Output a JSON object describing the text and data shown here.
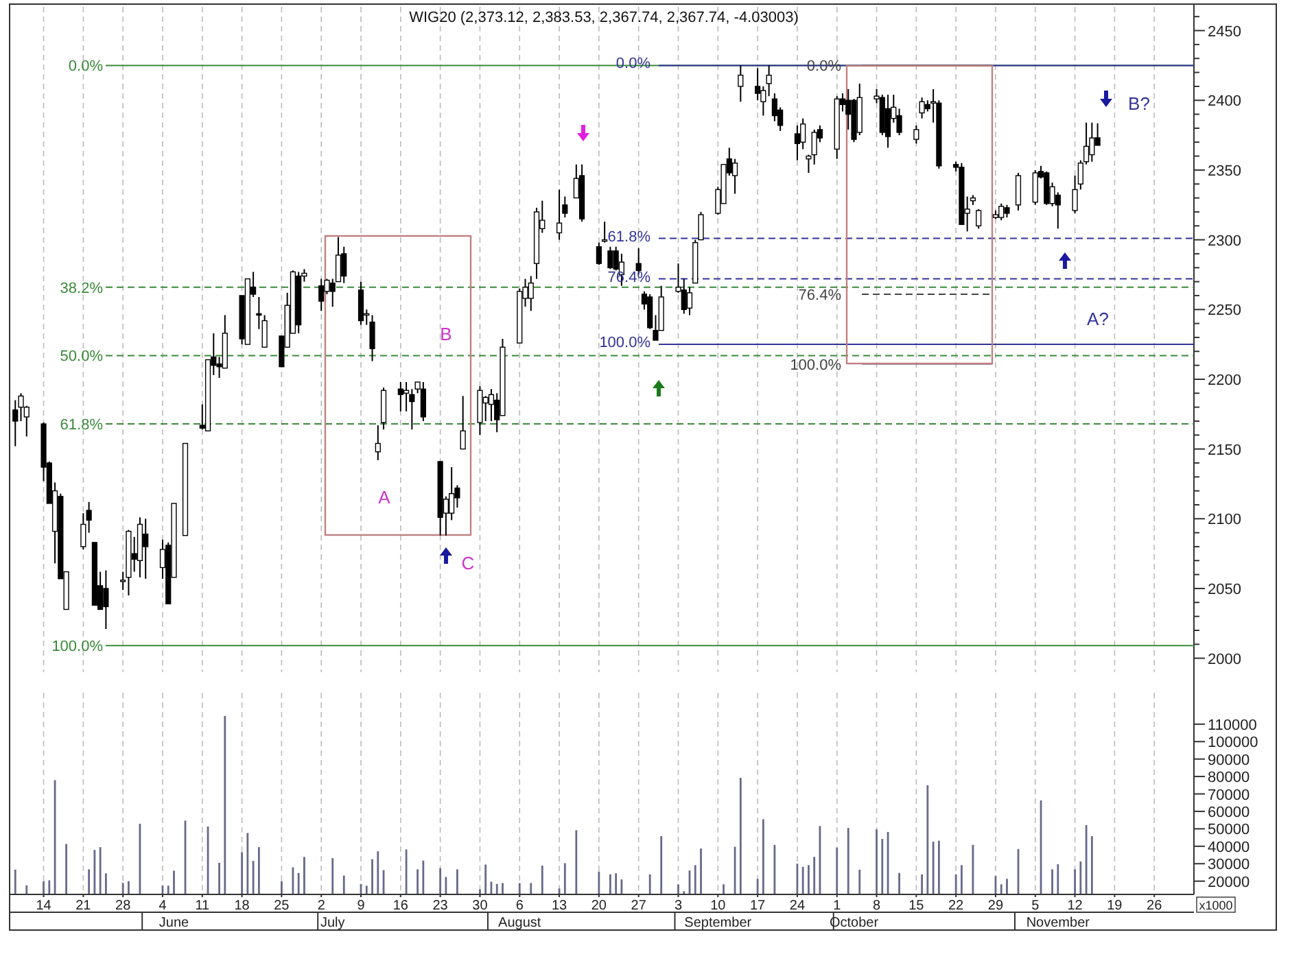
{
  "chart_data": [
    {
      "type": "candlestick",
      "title": "WIG20 (2,373.12, 2,383.53, 2,367.74, 2,367.74, -4.03003)",
      "x": [
        "--05-09",
        "--05-10",
        "--05-11",
        "--05-14",
        "--05-15",
        "--05-16",
        "--05-17",
        "--05-18",
        "--05-21",
        "--05-22",
        "--05-23",
        "--05-24",
        "--05-25",
        "--05-28",
        "--05-29",
        "--05-30",
        "--05-31",
        "--06-01",
        "--06-04",
        "--06-05",
        "--06-06",
        "--06-08",
        "--06-11",
        "--06-12",
        "--06-13",
        "--06-14",
        "--06-15",
        "--06-18",
        "--06-19",
        "--06-20",
        "--06-21",
        "--06-22",
        "--06-25",
        "--06-26",
        "--06-27",
        "--06-28",
        "--06-29",
        "--07-02",
        "--07-03",
        "--07-04",
        "--07-05",
        "--07-06",
        "--07-09",
        "--07-10",
        "--07-11",
        "--07-12",
        "--07-13",
        "--07-16",
        "--07-17",
        "--07-18",
        "--07-19",
        "--07-20",
        "--07-23",
        "--07-24",
        "--07-25",
        "--07-26",
        "--07-27",
        "--07-30",
        "--07-31",
        "--08-01",
        "--08-02",
        "--08-03",
        "--08-06",
        "--08-07",
        "--08-08",
        "--08-09",
        "--08-10",
        "--08-13",
        "--08-14",
        "--08-16",
        "--08-17",
        "--08-20",
        "--08-21",
        "--08-22",
        "--08-23",
        "--08-24",
        "--08-27",
        "--08-28",
        "--08-29",
        "--08-30",
        "--08-31",
        "--09-03",
        "--09-04",
        "--09-05",
        "--09-06",
        "--09-07",
        "--09-10",
        "--09-11",
        "--09-12",
        "--09-13",
        "--09-14",
        "--09-17",
        "--09-18",
        "--09-19",
        "--09-20",
        "--09-21",
        "--09-24",
        "--09-25",
        "--09-26",
        "--09-27",
        "--09-28",
        "--10-01",
        "--10-02",
        "--10-03",
        "--10-04",
        "--10-05",
        "--10-08",
        "--10-09",
        "--10-10",
        "--10-11",
        "--10-12",
        "--10-15",
        "--10-16",
        "--10-17",
        "--10-18",
        "--10-19",
        "--10-22",
        "--10-23",
        "--10-24",
        "--10-25",
        "--10-26",
        "--10-29",
        "--10-30",
        "--10-31",
        "--11-02",
        "--11-05",
        "--11-06",
        "--11-07",
        "--11-08",
        "--11-09",
        "--11-12",
        "--11-13",
        "--11-14",
        "--11-15",
        "--11-16"
      ],
      "ohlc": [
        [
          2178,
          2185,
          2152,
          2170
        ],
        [
          2180,
          2190,
          2170,
          2188
        ],
        [
          2173,
          2181,
          2159,
          2180
        ],
        [
          2168,
          2169,
          2127,
          2137
        ],
        [
          2140,
          2141,
          2111,
          2111
        ],
        [
          2091,
          2126,
          2068,
          2120
        ],
        [
          2116,
          2118,
          2057,
          2057
        ],
        [
          2035,
          2062,
          2035,
          2062
        ],
        [
          2080,
          2104,
          2078,
          2096
        ],
        [
          2106,
          2112,
          2090,
          2099
        ],
        [
          2083,
          2083,
          2038,
          2038
        ],
        [
          2052,
          2062,
          2035,
          2035
        ],
        [
          2050,
          2063,
          2021,
          2037
        ],
        [
          2055,
          2062,
          2049,
          2056
        ],
        [
          2058,
          2092,
          2045,
          2091
        ],
        [
          2075,
          2087,
          2062,
          2071
        ],
        [
          2070,
          2101,
          2058,
          2096
        ],
        [
          2089,
          2100,
          2057,
          2080
        ],
        [
          2065,
          2085,
          2057,
          2078
        ],
        [
          2081,
          2083,
          2039,
          2039
        ],
        [
          2058,
          2111,
          2058,
          2111
        ],
        [
          2088,
          2154,
          2088,
          2154
        ],
        [
          2167,
          2182,
          2164,
          2165
        ],
        [
          2163,
          2214,
          2163,
          2214
        ],
        [
          2216,
          2233,
          2203,
          2210
        ],
        [
          2211,
          2216,
          2201,
          2209
        ],
        [
          2208,
          2246,
          2208,
          2233
        ],
        [
          2260,
          2260,
          2225,
          2229
        ],
        [
          2225,
          2272,
          2225,
          2272
        ],
        [
          2266,
          2277,
          2259,
          2261
        ],
        [
          2247,
          2259,
          2236,
          2246
        ],
        [
          2223,
          2246,
          2223,
          2242
        ],
        [
          2231,
          2231,
          2209,
          2209
        ],
        [
          2223,
          2262,
          2223,
          2253
        ],
        [
          2233,
          2278,
          2233,
          2277
        ],
        [
          2274,
          2277,
          2233,
          2239
        ],
        [
          2274,
          2279,
          2270,
          2276
        ],
        [
          2267,
          2272,
          2249,
          2256
        ],
        [
          2263,
          2272,
          2261,
          2271
        ],
        [
          2269,
          2272,
          2252,
          2263
        ],
        [
          2270,
          2302,
          2270,
          2289
        ],
        [
          2290,
          2295,
          2269,
          2274
        ],
        [
          2264,
          2270,
          2239,
          2242
        ],
        [
          2246,
          2250,
          2239,
          2247
        ],
        [
          2241,
          2246,
          2213,
          2222
        ],
        [
          2148,
          2167,
          2142,
          2154
        ],
        [
          2169,
          2194,
          2164,
          2192
        ],
        [
          2193,
          2198,
          2177,
          2189
        ],
        [
          2190,
          2198,
          2177,
          2192
        ],
        [
          2189,
          2193,
          2164,
          2184
        ],
        [
          2193,
          2198,
          2190,
          2198
        ],
        [
          2193,
          2198,
          2170,
          2173
        ],
        [
          2141,
          2141,
          2088,
          2101
        ],
        [
          2104,
          2116,
          2088,
          2114
        ],
        [
          2104,
          2137,
          2099,
          2118
        ],
        [
          2122,
          2124,
          2108,
          2115
        ],
        [
          2150,
          2188,
          2150,
          2163
        ],
        [
          2169,
          2195,
          2160,
          2192
        ],
        [
          2183,
          2188,
          2170,
          2187
        ],
        [
          2182,
          2193,
          2170,
          2189
        ],
        [
          2185,
          2190,
          2162,
          2171
        ],
        [
          2174,
          2229,
          2174,
          2223
        ],
        [
          2226,
          2265,
          2226,
          2263
        ],
        [
          2258,
          2272,
          2252,
          2266
        ],
        [
          2258,
          2274,
          2249,
          2269
        ],
        [
          2283,
          2323,
          2272,
          2320
        ],
        [
          2308,
          2328,
          2305,
          2314
        ],
        [
          2305,
          2336,
          2300,
          2312
        ],
        [
          2325,
          2331,
          2316,
          2319
        ],
        [
          2330,
          2354,
          2330,
          2344
        ],
        [
          2346,
          2354,
          2313,
          2315
        ],
        [
          2295,
          2298,
          2282,
          2283
        ],
        [
          2299,
          2313,
          2298,
          2300
        ],
        [
          2292,
          2295,
          2279,
          2280
        ],
        [
          2292,
          2295,
          2278,
          2279
        ],
        [
          2275,
          2290,
          2267,
          2284
        ],
        [
          2283,
          2294,
          2275,
          2278
        ],
        [
          2261,
          2263,
          2250,
          2254
        ],
        [
          2259,
          2261,
          2236,
          2237
        ],
        [
          2235,
          2246,
          2228,
          2228
        ],
        [
          2235,
          2267,
          2235,
          2259
        ],
        [
          2263,
          2283,
          2262,
          2266
        ],
        [
          2264,
          2272,
          2247,
          2250
        ],
        [
          2251,
          2266,
          2246,
          2262
        ],
        [
          2269,
          2300,
          2269,
          2298
        ],
        [
          2300,
          2320,
          2300,
          2318
        ],
        [
          2319,
          2338,
          2318,
          2336
        ],
        [
          2326,
          2354,
          2326,
          2354
        ],
        [
          2358,
          2366,
          2346,
          2348
        ],
        [
          2346,
          2358,
          2333,
          2355
        ],
        [
          2410,
          2425,
          2399,
          2418
        ],
        [
          2410,
          2423,
          2400,
          2405
        ],
        [
          2399,
          2410,
          2389,
          2407
        ],
        [
          2412,
          2425,
          2403,
          2418
        ],
        [
          2401,
          2405,
          2385,
          2389
        ],
        [
          2393,
          2395,
          2378,
          2382
        ],
        [
          2376,
          2382,
          2357,
          2369
        ],
        [
          2370,
          2387,
          2365,
          2383
        ],
        [
          2358,
          2361,
          2348,
          2360
        ],
        [
          2361,
          2379,
          2354,
          2377
        ],
        [
          2379,
          2382,
          2370,
          2373
        ],
        [
          2365,
          2403,
          2358,
          2401
        ],
        [
          2401,
          2405,
          2392,
          2397
        ],
        [
          2400,
          2408,
          2379,
          2390
        ],
        [
          2400,
          2401,
          2370,
          2372
        ],
        [
          2377,
          2412,
          2375,
          2402
        ],
        [
          2401,
          2408,
          2398,
          2403
        ],
        [
          2402,
          2404,
          2375,
          2377
        ],
        [
          2394,
          2404,
          2366,
          2374
        ],
        [
          2387,
          2404,
          2384,
          2395
        ],
        [
          2389,
          2394,
          2375,
          2377
        ],
        [
          2372,
          2382,
          2369,
          2379
        ],
        [
          2391,
          2402,
          2387,
          2399
        ],
        [
          2397,
          2400,
          2392,
          2394
        ],
        [
          2398,
          2408,
          2384,
          2399
        ],
        [
          2398,
          2400,
          2351,
          2353
        ],
        [
          2354,
          2356,
          2349,
          2352
        ],
        [
          2352,
          2355,
          2311,
          2311
        ],
        [
          2319,
          2331,
          2306,
          2322
        ],
        [
          2328,
          2332,
          2325,
          2330
        ],
        [
          2310,
          2322,
          2308,
          2321
        ],
        [
          2316,
          2321,
          2315,
          2318
        ],
        [
          2316,
          2326,
          2314,
          2324
        ],
        [
          2323,
          2325,
          2316,
          2319
        ],
        [
          2325,
          2348,
          2321,
          2346
        ],
        [
          2327,
          2350,
          2325,
          2348
        ],
        [
          2349,
          2353,
          2344,
          2345
        ],
        [
          2348,
          2349,
          2325,
          2326
        ],
        [
          2326,
          2341,
          2324,
          2338
        ],
        [
          2332,
          2334,
          2308,
          2325
        ],
        [
          2321,
          2346,
          2319,
          2336
        ],
        [
          2340,
          2357,
          2336,
          2355
        ],
        [
          2356,
          2384,
          2354,
          2367
        ],
        [
          2361,
          2384,
          2356,
          2373
        ],
        [
          2373.12,
          2383.53,
          2367.74,
          2367.74
        ]
      ],
      "xlim": [
        "--05-08",
        "--12-03"
      ],
      "xticks": [
        {
          "value": "--05-14",
          "label": null
        },
        {
          "value": "--05-21",
          "label": null
        },
        {
          "value": "--05-28",
          "label": null
        },
        {
          "value": "--06-04",
          "label": null
        },
        {
          "value": "--06-11",
          "label": null
        },
        {
          "value": "--06-18",
          "label": null
        },
        {
          "value": "--06-25",
          "label": null
        },
        {
          "value": "--07-02",
          "label": null
        },
        {
          "value": "--07-09",
          "label": null
        },
        {
          "value": "--07-16",
          "label": null
        },
        {
          "value": "--07-23",
          "label": null
        },
        {
          "value": "--07-30",
          "label": null
        },
        {
          "value": "--08-06",
          "label": null
        },
        {
          "value": "--08-13",
          "label": null
        },
        {
          "value": "--08-20",
          "label": null
        },
        {
          "value": "--08-27",
          "label": null
        },
        {
          "value": "--09-03",
          "label": null
        },
        {
          "value": "--09-10",
          "label": null
        },
        {
          "value": "--09-17",
          "label": null
        },
        {
          "value": "--09-24",
          "label": null
        },
        {
          "value": "--10-01",
          "label": null
        },
        {
          "value": "--10-08",
          "label": null
        },
        {
          "value": "--10-15",
          "label": null
        },
        {
          "value": "--10-22",
          "label": null
        },
        {
          "value": "--10-29",
          "label": null
        },
        {
          "value": "--11-05",
          "label": null
        },
        {
          "value": "--11-12",
          "label": null
        },
        {
          "value": "--11-19",
          "label": null
        },
        {
          "value": "--11-26",
          "label": null
        }
      ],
      "ylim": [
        1990,
        2467
      ],
      "yticks": [
        2000,
        {
          "value": 2010,
          "label": null
        },
        {
          "value": 2020,
          "label": null
        },
        {
          "value": 2030,
          "label": null
        },
        {
          "value": 2040,
          "label": null
        },
        2050,
        {
          "value": 2060,
          "label": null
        },
        {
          "value": 2070,
          "label": null
        },
        {
          "value": 2080,
          "label": null
        },
        {
          "value": 2090,
          "label": null
        },
        2100,
        {
          "value": 2110,
          "label": null
        },
        {
          "value": 2120,
          "label": null
        },
        {
          "value": 2130,
          "label": null
        },
        {
          "value": 2140,
          "label": null
        },
        2150,
        {
          "value": 2160,
          "label": null
        },
        {
          "value": 2170,
          "label": null
        },
        {
          "value": 2180,
          "label": null
        },
        {
          "value": 2190,
          "label": null
        },
        2200,
        {
          "value": 2210,
          "label": null
        },
        {
          "value": 2220,
          "label": null
        },
        {
          "value": 2230,
          "label": null
        },
        {
          "value": 2240,
          "label": null
        },
        2250,
        {
          "value": 2260,
          "label": null
        },
        {
          "value": 2270,
          "label": null
        },
        {
          "value": 2280,
          "label": null
        },
        {
          "value": 2290,
          "label": null
        },
        2300,
        {
          "value": 2310,
          "label": null
        },
        {
          "value": 2320,
          "label": null
        },
        {
          "value": 2330,
          "label": null
        },
        {
          "value": 2340,
          "label": null
        },
        2350,
        {
          "value": 2360,
          "label": null
        },
        {
          "value": 2370,
          "label": null
        },
        {
          "value": 2380,
          "label": null
        },
        {
          "value": 2390,
          "label": null
        },
        2400,
        {
          "value": 2410,
          "label": null
        },
        {
          "value": 2420,
          "label": null
        },
        {
          "value": 2430,
          "label": null
        },
        {
          "value": 2440,
          "label": null
        },
        2450,
        {
          "value": 2460,
          "label": null
        }
      ],
      "tick_labels": "y",
      "grid": "x",
      "ref_lines": [
        {
          "axis": "y",
          "value": 2425,
          "color": "#3a8a3a",
          "line_style": "solid"
        },
        {
          "axis": "y",
          "value": 2266,
          "color": "#3a8a3a",
          "line_style": "dashed"
        },
        {
          "axis": "y",
          "value": 2217,
          "color": "#3a8a3a",
          "line_style": "dashed"
        },
        {
          "axis": "y",
          "value": 2168,
          "color": "#3a8a3a",
          "line_style": "dashed"
        },
        {
          "axis": "y",
          "value": 2009,
          "color": "#3a8a3a",
          "line_style": "solid"
        },
        {
          "axis": "y",
          "value": 2425,
          "color": "#333399",
          "line_style": "solid"
        },
        {
          "axis": "y",
          "value": 2301,
          "color": "#333399",
          "line_style": "dashed"
        },
        {
          "axis": "y",
          "value": 2272,
          "color": "#333399",
          "line_style": "dashed"
        },
        {
          "axis": "y",
          "value": 2225,
          "color": "#333399",
          "line_style": "solid"
        },
        {
          "axis": "y",
          "value": 2425,
          "color": "#444444",
          "line_style": "solid"
        },
        {
          "axis": "y",
          "value": 2261,
          "color": "#444444",
          "line_style": "dashed"
        },
        {
          "axis": "y",
          "value": 2211,
          "color": "#444444",
          "line_style": "solid"
        }
      ],
      "annotations": [
        "A",
        "B",
        "C",
        "A?",
        "B?",
        "0.0%",
        "38.2%",
        "50.0%",
        "61.8%",
        "100.0%",
        "0.0%",
        "61.8%",
        "76.4%",
        "100.0%",
        "0.0%",
        "76.4%",
        "100.0%"
      ]
    },
    {
      "type": "bar",
      "color": "#66698a",
      "ylabel": "x1000",
      "x": [
        "--05-09",
        "--05-10",
        "--05-11",
        "--05-14",
        "--05-15",
        "--05-16",
        "--05-17",
        "--05-18",
        "--05-21",
        "--05-22",
        "--05-23",
        "--05-24",
        "--05-25",
        "--05-28",
        "--05-29",
        "--05-30",
        "--05-31",
        "--06-01",
        "--06-04",
        "--06-05",
        "--06-06",
        "--06-08",
        "--06-11",
        "--06-12",
        "--06-13",
        "--06-14",
        "--06-15",
        "--06-18",
        "--06-19",
        "--06-20",
        "--06-21",
        "--06-22",
        "--06-25",
        "--06-26",
        "--06-27",
        "--06-28",
        "--06-29",
        "--07-02",
        "--07-03",
        "--07-04",
        "--07-05",
        "--07-06",
        "--07-09",
        "--07-10",
        "--07-11",
        "--07-12",
        "--07-13",
        "--07-16",
        "--07-17",
        "--07-18",
        "--07-19",
        "--07-20",
        "--07-23",
        "--07-24",
        "--07-25",
        "--07-26",
        "--07-27",
        "--07-30",
        "--07-31",
        "--08-01",
        "--08-02",
        "--08-03",
        "--08-06",
        "--08-07",
        "--08-08",
        "--08-09",
        "--08-10",
        "--08-13",
        "--08-14",
        "--08-16",
        "--08-17",
        "--08-20",
        "--08-21",
        "--08-22",
        "--08-23",
        "--08-24",
        "--08-27",
        "--08-28",
        "--08-29",
        "--08-30",
        "--08-31",
        "--09-03",
        "--09-04",
        "--09-05",
        "--09-06",
        "--09-07",
        "--09-10",
        "--09-11",
        "--09-12",
        "--09-13",
        "--09-14",
        "--09-17",
        "--09-18",
        "--09-19",
        "--09-20",
        "--09-21",
        "--09-24",
        "--09-25",
        "--09-26",
        "--09-27",
        "--09-28",
        "--10-01",
        "--10-02",
        "--10-03",
        "--10-04",
        "--10-05",
        "--10-08",
        "--10-09",
        "--10-10",
        "--10-11",
        "--10-12",
        "--10-15",
        "--10-16",
        "--10-17",
        "--10-18",
        "--10-19",
        "--10-22",
        "--10-23",
        "--10-24",
        "--10-25",
        "--10-26",
        "--10-29",
        "--10-30",
        "--10-31",
        "--11-02",
        "--11-05",
        "--11-06",
        "--11-07",
        "--11-08",
        "--11-09",
        "--11-12",
        "--11-13",
        "--11-14",
        "--11-15"
      ],
      "values": [
        26600,
        null,
        17600,
        20000,
        20500,
        77900,
        null,
        41300,
        null,
        26800,
        37900,
        39500,
        24500,
        19000,
        20000,
        null,
        52900,
        null,
        17400,
        17400,
        26000,
        54700,
        null,
        51300,
        null,
        30500,
        114700,
        36600,
        47600,
        31600,
        39500,
        null,
        20000,
        null,
        27900,
        24700,
        33900,
        null,
        null,
        33200,
        null,
        23200,
        18400,
        17400,
        32600,
        37100,
        26300,
        null,
        38200,
        null,
        26800,
        31800,
        27400,
        22400,
        null,
        26800,
        null,
        15300,
        29500,
        19700,
        18400,
        18900,
        18900,
        null,
        18900,
        null,
        28900,
        15800,
        30300,
        49200,
        null,
        25500,
        null,
        23900,
        24500,
        21000,
        null,
        null,
        23900,
        null,
        45800,
        18200,
        14200,
        26100,
        29200,
        38700,
        null,
        18200,
        null,
        39700,
        79200,
        21300,
        55500,
        null,
        40800,
        null,
        30000,
        28200,
        29200,
        33900,
        51600,
        39200,
        null,
        50500,
        null,
        26600,
        49700,
        44200,
        48200,
        null,
        24700,
        null,
        23900,
        75000,
        42600,
        43200,
        23900,
        29200,
        null,
        40800,
        null,
        22900,
        18200,
        21300,
        38400,
        null,
        66300,
        null,
        26800,
        29700,
        26800,
        31300,
        52100,
        45800
      ],
      "xlim": [
        "--05-08",
        "--12-03"
      ],
      "xticks": [
        {
          "value": "--05-14",
          "label": "14"
        },
        {
          "value": "--05-21",
          "label": "21"
        },
        {
          "value": "--05-28",
          "label": "28"
        },
        {
          "value": "--06-04",
          "label": "4"
        },
        {
          "value": "--06-11",
          "label": "11"
        },
        {
          "value": "--06-18",
          "label": "18"
        },
        {
          "value": "--06-25",
          "label": "25"
        },
        {
          "value": "--07-02",
          "label": "2"
        },
        {
          "value": "--07-09",
          "label": "9"
        },
        {
          "value": "--07-16",
          "label": "16"
        },
        {
          "value": "--07-23",
          "label": "23"
        },
        {
          "value": "--07-30",
          "label": "30"
        },
        {
          "value": "--08-06",
          "label": "6"
        },
        {
          "value": "--08-13",
          "label": "13"
        },
        {
          "value": "--08-20",
          "label": "20"
        },
        {
          "value": "--08-27",
          "label": "27"
        },
        {
          "value": "--09-03",
          "label": "3"
        },
        {
          "value": "--09-10",
          "label": "10"
        },
        {
          "value": "--09-17",
          "label": "17"
        },
        {
          "value": "--09-24",
          "label": "24"
        },
        {
          "value": "--10-01",
          "label": "1"
        },
        {
          "value": "--10-08",
          "label": "8"
        },
        {
          "value": "--10-15",
          "label": "15"
        },
        {
          "value": "--10-22",
          "label": "22"
        },
        {
          "value": "--10-29",
          "label": "29"
        },
        {
          "value": "--11-05",
          "label": "5"
        },
        {
          "value": "--11-12",
          "label": "12"
        },
        {
          "value": "--11-19",
          "label": "19"
        },
        {
          "value": "--11-26",
          "label": "26"
        }
      ],
      "x2lim": [
        "--05-08",
        "--12-03"
      ],
      "x2ticks": [
        {
          "value": "--06-06",
          "label": "June"
        },
        {
          "value": "--07-04",
          "label": "July"
        },
        {
          "value": "--08-06",
          "label": "August"
        },
        {
          "value": "--09-10",
          "label": "September"
        },
        {
          "value": "--10-04",
          "label": "October"
        },
        {
          "value": "--11-09",
          "label": "November"
        }
      ],
      "ylim": [
        12400,
        128000
      ],
      "yticks": [
        20000,
        30000,
        40000,
        50000,
        60000,
        70000,
        80000,
        90000,
        100000,
        110000
      ],
      "grid": "x"
    }
  ]
}
